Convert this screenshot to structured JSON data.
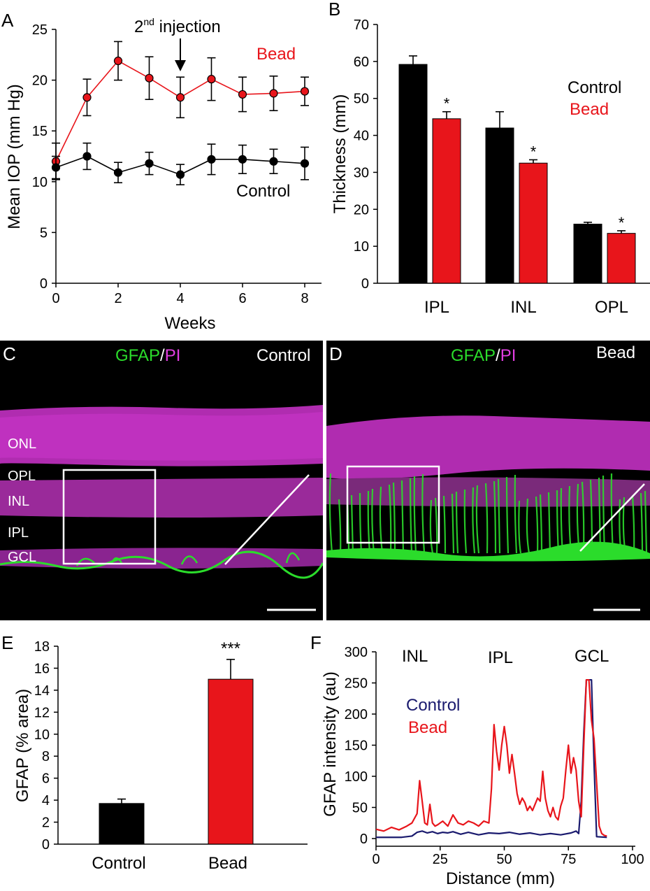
{
  "colors": {
    "bead": "#e8151b",
    "control": "#000000",
    "control_trace": "#1a1a6e",
    "gfap": "#2bdc2b",
    "pi": "#e23ee2"
  },
  "panels": {
    "A": {
      "letter": "A",
      "annotation_prefix": "2",
      "annotation_sup": "nd",
      "annotation_suffix": " injection",
      "series_label_bead": "Bead",
      "series_label_control": "Control"
    },
    "B": {
      "letter": "B",
      "legend_control": "Control",
      "legend_bead": "Bead"
    },
    "C": {
      "letter": "C",
      "stain_gfap": "GFAP",
      "stain_sep": "/",
      "stain_pi": "PI",
      "condition": "Control",
      "layers": [
        "ONL",
        "OPL",
        "INL",
        "IPL",
        "GCL"
      ]
    },
    "D": {
      "letter": "D",
      "stain_gfap": "GFAP",
      "stain_sep": "/",
      "stain_pi": "PI",
      "condition": "Bead"
    },
    "E": {
      "letter": "E"
    },
    "F": {
      "letter": "F",
      "region_labels": [
        "INL",
        "IPL",
        "GCL"
      ],
      "legend_control": "Control",
      "legend_bead": "Bead"
    }
  },
  "chart_data": [
    {
      "panel": "A",
      "type": "line",
      "xlabel": "Weeks",
      "ylabel": "Mean IOP (mm Hg)",
      "xlim": [
        0,
        8
      ],
      "ylim": [
        0,
        25
      ],
      "xticks": [
        0,
        2,
        4,
        6,
        8
      ],
      "yticks": [
        0,
        5,
        10,
        15,
        20,
        25
      ],
      "series": [
        {
          "name": "Bead",
          "x": [
            0,
            1,
            2,
            3,
            4,
            5,
            6,
            7,
            8
          ],
          "values": [
            12.0,
            18.3,
            21.9,
            20.2,
            18.3,
            20.1,
            18.6,
            18.7,
            18.9
          ],
          "errors": [
            1.8,
            1.8,
            1.9,
            2.1,
            2.0,
            2.1,
            1.7,
            1.7,
            1.4
          ]
        },
        {
          "name": "Control",
          "x": [
            0,
            1,
            2,
            3,
            4,
            5,
            6,
            7,
            8
          ],
          "values": [
            11.4,
            12.5,
            10.9,
            11.8,
            10.7,
            12.2,
            12.2,
            12.0,
            11.8
          ],
          "errors": [
            1.1,
            1.3,
            1.0,
            1.1,
            1.0,
            1.5,
            1.4,
            1.2,
            1.6
          ]
        }
      ],
      "annotations": [
        {
          "x": 4,
          "text": "2nd injection"
        }
      ]
    },
    {
      "panel": "B",
      "type": "bar",
      "xlabel": "",
      "ylabel": "Thickness (mm)",
      "ylim": [
        0,
        70
      ],
      "yticks": [
        0,
        10,
        20,
        30,
        40,
        50,
        60,
        70
      ],
      "categories": [
        "IPL",
        "INL",
        "OPL"
      ],
      "series": [
        {
          "name": "Control",
          "values": [
            59.2,
            42.0,
            16.0
          ],
          "errors": [
            2.3,
            4.4,
            0.5
          ]
        },
        {
          "name": "Bead",
          "values": [
            44.5,
            32.5,
            13.5
          ],
          "errors": [
            1.9,
            0.9,
            0.7
          ],
          "significance": [
            "*",
            "*",
            "*"
          ]
        }
      ],
      "legend": "right"
    },
    {
      "panel": "E",
      "type": "bar",
      "xlabel": "",
      "ylabel": "GFAP (% area)",
      "ylim": [
        0,
        18
      ],
      "yticks": [
        0,
        2,
        4,
        6,
        8,
        10,
        12,
        14,
        16,
        18
      ],
      "categories": [
        "Control",
        "Bead"
      ],
      "values": [
        3.7,
        15.0
      ],
      "errors": [
        0.4,
        1.8
      ],
      "significance": [
        "",
        "***"
      ]
    },
    {
      "panel": "F",
      "type": "line",
      "xlabel": "Distance (mm)",
      "ylabel": "GFAP intensity (au)",
      "xlim": [
        0,
        100
      ],
      "ylim": [
        0,
        300
      ],
      "xticks": [
        0,
        25,
        50,
        75,
        100
      ],
      "yticks": [
        0,
        50,
        100,
        150,
        200,
        250,
        300
      ],
      "series": [
        {
          "name": "Control",
          "x": [
            0,
            10,
            14,
            16,
            18,
            20,
            22,
            24,
            26,
            28,
            30,
            33,
            36,
            40,
            44,
            48,
            52,
            56,
            60,
            64,
            68,
            72,
            76,
            78,
            79,
            80,
            81,
            82,
            83,
            84,
            85,
            86,
            90
          ],
          "values": [
            2,
            2,
            4,
            10,
            12,
            9,
            11,
            8,
            10,
            9,
            11,
            7,
            10,
            6,
            9,
            8,
            10,
            7,
            9,
            6,
            8,
            6,
            9,
            12,
            8,
            60,
            170,
            255,
            255,
            255,
            120,
            3,
            2
          ]
        },
        {
          "name": "Bead",
          "x": [
            0,
            3,
            6,
            9,
            12,
            14,
            16,
            17,
            18,
            19,
            20,
            21,
            22,
            23,
            24,
            26,
            28,
            30,
            32,
            34,
            36,
            38,
            40,
            42,
            44,
            45,
            46,
            47,
            48,
            49,
            50,
            51,
            52,
            53,
            54,
            55,
            56,
            57,
            58,
            59,
            60,
            61,
            62,
            63,
            64,
            65,
            66,
            67,
            68,
            69,
            70,
            71,
            72,
            73,
            74,
            75,
            76,
            77,
            78,
            79,
            80,
            81,
            82,
            83,
            84,
            85,
            86,
            87,
            88,
            89,
            90
          ],
          "values": [
            15,
            12,
            18,
            14,
            20,
            25,
            40,
            93,
            60,
            25,
            22,
            55,
            25,
            20,
            22,
            28,
            20,
            38,
            25,
            22,
            28,
            25,
            20,
            28,
            25,
            80,
            183,
            140,
            110,
            150,
            180,
            150,
            105,
            135,
            105,
            72,
            55,
            65,
            58,
            45,
            52,
            45,
            55,
            65,
            60,
            108,
            65,
            45,
            35,
            50,
            35,
            30,
            52,
            65,
            110,
            150,
            105,
            130,
            110,
            60,
            35,
            150,
            255,
            255,
            190,
            160,
            90,
            20,
            8,
            5,
            4
          ]
        }
      ],
      "legend": "top-left"
    }
  ]
}
